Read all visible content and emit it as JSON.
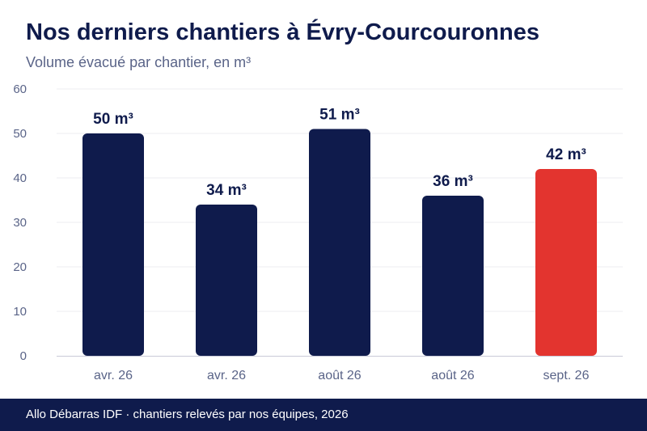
{
  "title": "Nos derniers chantiers à Évry-Courcouronnes",
  "subtitle": "Volume évacué par chantier, en m³",
  "footer": "Allo Débarras IDF · chantiers relevés par nos équipes, 2026",
  "colors": {
    "bar": "#0f1b4c",
    "highlight": "#e3342f",
    "grid": "#ececf2",
    "axis_text": "#5a6488",
    "label_text": "#0f1b4c"
  },
  "chart_data": {
    "type": "bar",
    "categories": [
      "avr. 26",
      "avr. 26",
      "août 26",
      "août 26",
      "sept. 26"
    ],
    "values": [
      50,
      34,
      51,
      36,
      42
    ],
    "value_labels": [
      "50 m³",
      "34 m³",
      "51 m³",
      "36 m³",
      "42 m³"
    ],
    "highlight_index": 4,
    "ylim": [
      0,
      60
    ],
    "yticks": [
      0,
      10,
      20,
      30,
      40,
      50,
      60
    ],
    "xlabel": "",
    "ylabel": "",
    "grid": true,
    "legend": "none"
  }
}
